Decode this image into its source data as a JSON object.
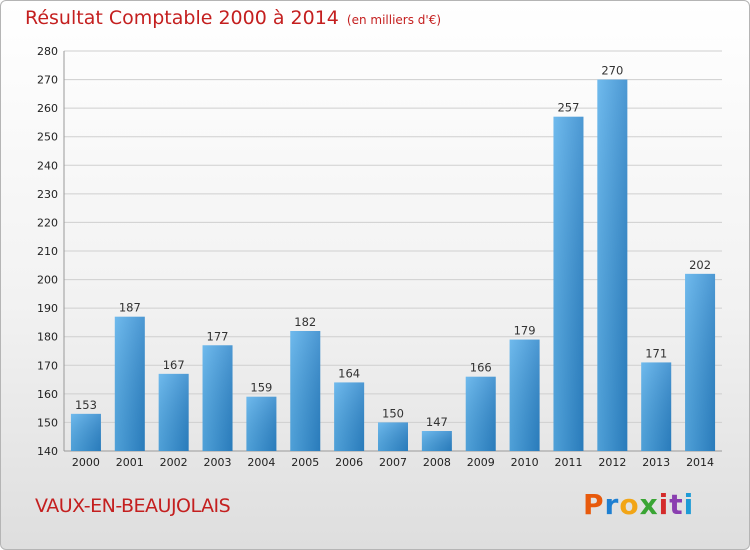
{
  "title": "Résultat Comptable 2000 à 2014",
  "subtitle": "(en milliers d'€)",
  "commune": "VAUX-EN-BEAUJOLAIS",
  "logo": {
    "letters": [
      "P",
      "r",
      "o",
      "x",
      "i",
      "t",
      "i"
    ],
    "colors": [
      "#e85a0c",
      "#1e7fd1",
      "#f2a516",
      "#3aa534",
      "#d42b2b",
      "#8a3fb0",
      "#1e9bd6"
    ]
  },
  "colors": {
    "bar": "#3f9ee0",
    "bar_light": "#5db2ec",
    "bar_dark": "#2a7fc4",
    "title": "#c41f1f"
  },
  "chart_data": {
    "type": "bar",
    "categories": [
      "2000",
      "2001",
      "2002",
      "2003",
      "2004",
      "2005",
      "2006",
      "2007",
      "2008",
      "2009",
      "2010",
      "2011",
      "2012",
      "2013",
      "2014"
    ],
    "values": [
      153,
      187,
      167,
      177,
      159,
      182,
      164,
      150,
      147,
      166,
      179,
      257,
      270,
      171,
      202
    ],
    "ylim": [
      140,
      280
    ],
    "yticks": [
      140,
      150,
      160,
      170,
      180,
      190,
      200,
      210,
      220,
      230,
      240,
      250,
      260,
      270,
      280
    ],
    "grid": true
  }
}
